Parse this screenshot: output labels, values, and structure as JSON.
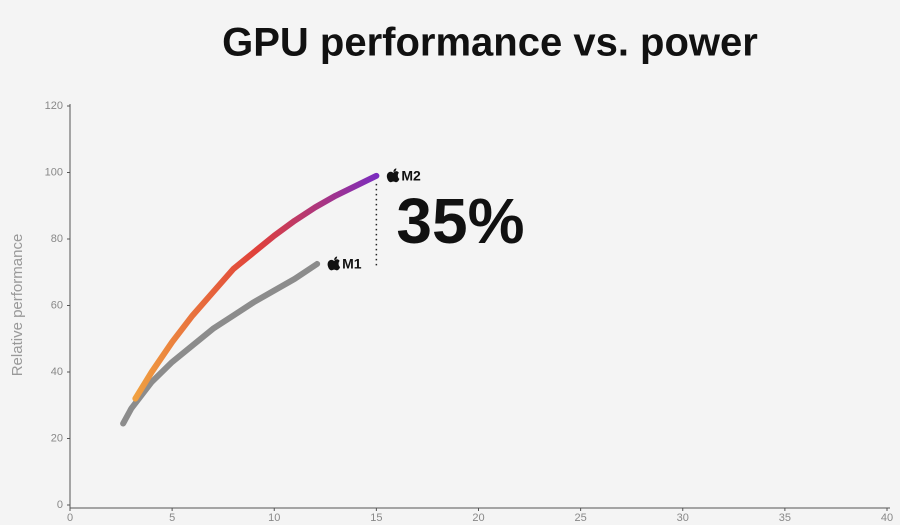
{
  "chart_data": {
    "type": "line",
    "title": "GPU performance vs. power",
    "y_label": "Relative performance",
    "annotation": "35%",
    "xlim": [
      0,
      40
    ],
    "xticks": [
      0,
      5,
      10,
      15,
      20,
      25,
      30,
      35,
      40
    ],
    "ylim": [
      0,
      120
    ],
    "yticks": [
      0,
      20,
      40,
      60,
      80,
      100,
      120
    ],
    "series": [
      {
        "name": "M1",
        "color": "#8c8c8c",
        "x": [
          2.6,
          3,
          4,
          5,
          6,
          7,
          8,
          9,
          10,
          11,
          12.1
        ],
        "values": [
          24.5,
          29,
          37,
          43,
          48,
          53,
          57,
          61,
          64.5,
          68,
          72.5
        ]
      },
      {
        "name": "M2",
        "colors": [
          "#f0a040",
          "#e0403a",
          "#7a2cc0"
        ],
        "x": [
          3.2,
          4,
          5,
          6,
          7,
          8,
          9,
          10,
          11,
          12,
          13,
          14,
          15
        ],
        "values": [
          32,
          40,
          49,
          57,
          64,
          71,
          76,
          81,
          85.5,
          89.5,
          93,
          96,
          99
        ]
      }
    ]
  }
}
